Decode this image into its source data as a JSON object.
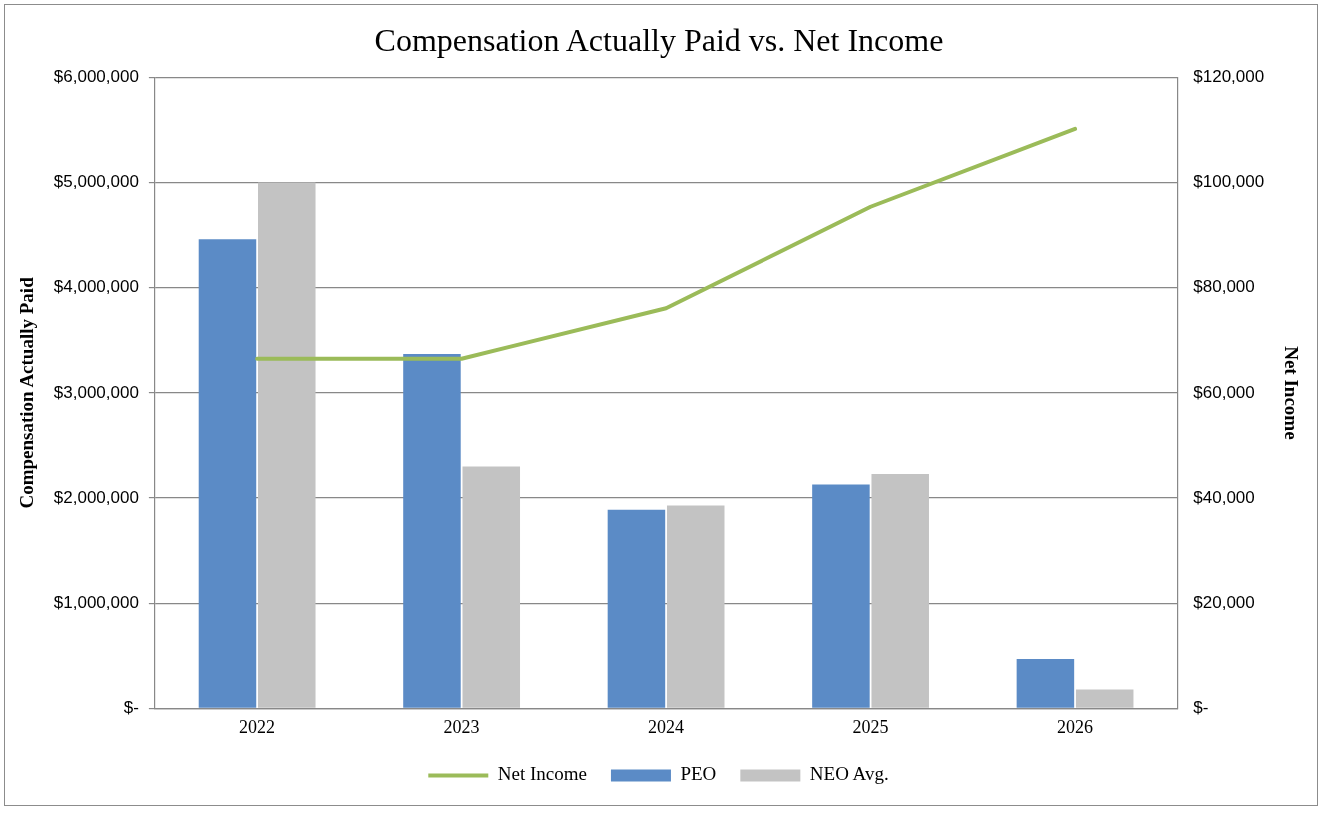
{
  "chart_data": {
    "type": "bar",
    "title": "Compensation Actually Paid vs. Net Income",
    "ylabel": "Compensation Actually Paid",
    "y2label": "Net Income",
    "categories": [
      "2022",
      "2023",
      "2024",
      "2025",
      "2026"
    ],
    "series": [
      {
        "name": "PEO",
        "color": "#5b8bc6",
        "values": [
          4460000,
          3370000,
          1890000,
          2130000,
          470000
        ]
      },
      {
        "name": "NEO Avg.",
        "color": "#c3c3c3",
        "values": [
          5000000,
          2300000,
          1930000,
          2230000,
          180000
        ]
      },
      {
        "name": "Net Income",
        "type": "line",
        "axis": "y2",
        "color": "#9bbb59",
        "values": [
          66500,
          66500,
          76100,
          95400,
          110200
        ]
      }
    ],
    "ylim": [
      0,
      6000000
    ],
    "yticks": [
      {
        "value": 0,
        "label": "$-"
      },
      {
        "value": 1000000,
        "label": "$1,000,000"
      },
      {
        "value": 2000000,
        "label": "$2,000,000"
      },
      {
        "value": 3000000,
        "label": "$3,000,000"
      },
      {
        "value": 4000000,
        "label": "$4,000,000"
      },
      {
        "value": 5000000,
        "label": "$5,000,000"
      },
      {
        "value": 6000000,
        "label": "$6,000,000"
      }
    ],
    "y2lim": [
      0,
      120000
    ],
    "y2ticks": [
      {
        "value": 0,
        "label": "$-"
      },
      {
        "value": 20000,
        "label": "$20,000"
      },
      {
        "value": 40000,
        "label": "$40,000"
      },
      {
        "value": 60000,
        "label": "$60,000"
      },
      {
        "value": 80000,
        "label": "$80,000"
      },
      {
        "value": 100000,
        "label": "$100,000"
      },
      {
        "value": 120000,
        "label": "$120,000"
      }
    ],
    "grid": "y",
    "legend": "bottom",
    "marker": "none",
    "line_style": "solid"
  }
}
